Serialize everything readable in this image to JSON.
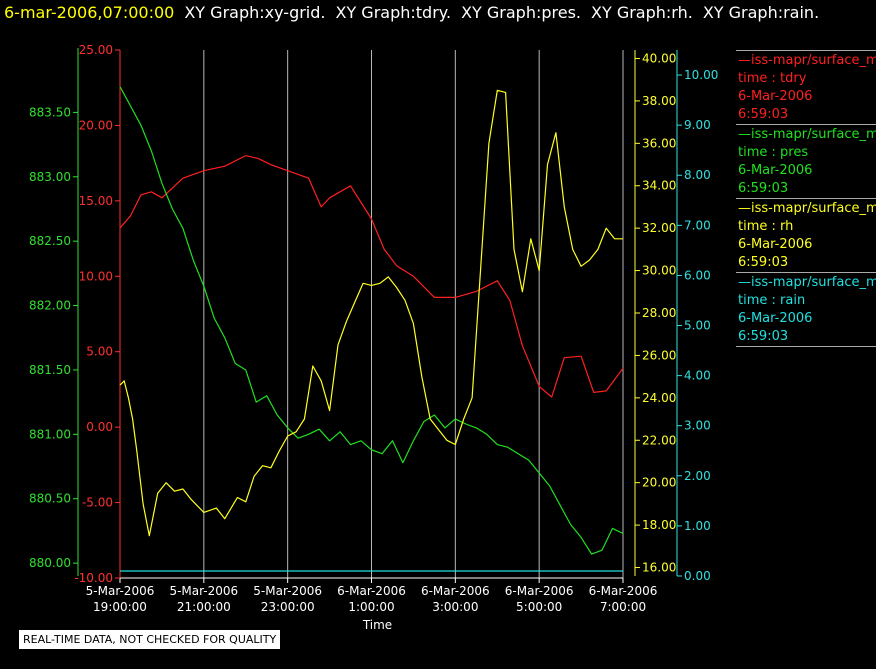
{
  "header": {
    "timestamp": "6-mar-2006,07:00:00",
    "graph_titles": [
      "XY Graph:xy-grid.",
      "XY Graph:tdry.",
      "XY Graph:pres.",
      "XY Graph:rh.",
      "XY Graph:rain."
    ]
  },
  "notice": "REAL-TIME DATA, NOT CHECKED FOR QUALITY",
  "legend": [
    {
      "color": "#ff2020",
      "source": "—iss-mapr/surface_m",
      "var": "time : tdry",
      "date": "6-Mar-2006",
      "time": "6:59:03"
    },
    {
      "color": "#20e020",
      "source": "—iss-mapr/surface_m",
      "var": "time : pres",
      "date": "6-Mar-2006",
      "time": "6:59:03"
    },
    {
      "color": "#ffff20",
      "source": "—iss-mapr/surface_m",
      "var": "time : rh",
      "date": "6-Mar-2006",
      "time": "6:59:03"
    },
    {
      "color": "#20e0e0",
      "source": "—iss-mapr/surface_m",
      "var": "time : rain",
      "date": "6-Mar-2006",
      "time": "6:59:03"
    }
  ],
  "chart_data": {
    "type": "line",
    "xlabel": "Time",
    "x_ticks": [
      {
        "d": "5-Mar-2006",
        "t": "19:00:00"
      },
      {
        "d": "5-Mar-2006",
        "t": "21:00:00"
      },
      {
        "d": "5-Mar-2006",
        "t": "23:00:00"
      },
      {
        "d": "6-Mar-2006",
        "t": "1:00:00"
      },
      {
        "d": "6-Mar-2006",
        "t": "3:00:00"
      },
      {
        "d": "6-Mar-2006",
        "t": "5:00:00"
      },
      {
        "d": "6-Mar-2006",
        "t": "7:00:00"
      }
    ],
    "x_unit": "hours since 5-Mar-2006 19:00",
    "xlim": [
      0,
      12
    ],
    "vertical_grid": true,
    "axes": {
      "tdry": {
        "color": "#ff3030",
        "ylim": [
          -10,
          25
        ],
        "ticks": [
          "25.00",
          "20.00",
          "15.00",
          "10.00",
          "5.00",
          "0.00",
          "-5.00",
          "-10.00"
        ]
      },
      "pres": {
        "color": "#30e030",
        "ylim": [
          879.9,
          884.0
        ],
        "ticks": [
          "883.50",
          "883.00",
          "882.50",
          "882.00",
          "881.50",
          "881.00",
          "880.50",
          "880.00"
        ]
      },
      "rh": {
        "color": "#ffff30",
        "ylim": [
          15.6,
          40.4
        ],
        "ticks": [
          "40.00",
          "38.00",
          "36.00",
          "34.00",
          "32.00",
          "30.00",
          "28.00",
          "26.00",
          "24.00",
          "22.00",
          "20.00",
          "18.00",
          "16.00"
        ]
      },
      "rain": {
        "color": "#30e0e0",
        "ylim": [
          0,
          10.5
        ],
        "ticks": [
          "10.00",
          "9.00",
          "8.00",
          "7.00",
          "6.00",
          "5.00",
          "4.00",
          "3.00",
          "2.00",
          "1.00",
          "0.00"
        ]
      }
    },
    "series": [
      {
        "name": "tdry",
        "axis": "tdry",
        "color": "#ff2020",
        "x": [
          0,
          0.25,
          0.5,
          0.75,
          1,
          1.5,
          2,
          2.5,
          3,
          3.3,
          3.6,
          4,
          4.5,
          4.8,
          5,
          5.5,
          6,
          6.3,
          6.6,
          7,
          7.5,
          8,
          8.5,
          9,
          9.3,
          9.6,
          10,
          10.3,
          10.6,
          11,
          11.3,
          11.6,
          12
        ],
        "y": [
          13.2,
          14,
          15.4,
          15.6,
          15.2,
          16.5,
          17,
          17.3,
          18,
          17.8,
          17.4,
          17,
          16.5,
          14.6,
          15.2,
          16,
          13.8,
          11.8,
          10.7,
          10,
          8.6,
          8.6,
          9,
          9.7,
          8.4,
          5.4,
          2.7,
          2,
          4.6,
          4.7,
          2.3,
          2.4,
          3.9
        ]
      },
      {
        "name": "pres",
        "axis": "pres",
        "color": "#20e020",
        "x": [
          0,
          0.25,
          0.5,
          0.75,
          1,
          1.25,
          1.5,
          1.75,
          2,
          2.25,
          2.5,
          2.75,
          3,
          3.25,
          3.5,
          3.75,
          4,
          4.25,
          4.5,
          4.75,
          5,
          5.25,
          5.5,
          5.75,
          6,
          6.25,
          6.5,
          6.75,
          7,
          7.25,
          7.5,
          7.75,
          8,
          8.25,
          8.5,
          8.75,
          9,
          9.25,
          9.5,
          9.75,
          10,
          10.25,
          10.5,
          10.75,
          11,
          11.25,
          11.5,
          11.75,
          12
        ],
        "y": [
          883.7,
          883.55,
          883.4,
          883.2,
          882.95,
          882.75,
          882.6,
          882.35,
          882.15,
          881.9,
          881.75,
          881.55,
          881.5,
          881.25,
          881.3,
          881.15,
          881.05,
          880.97,
          881.0,
          881.04,
          880.95,
          881.02,
          880.92,
          880.95,
          880.88,
          880.85,
          880.95,
          880.78,
          880.95,
          881.1,
          881.15,
          881.05,
          881.12,
          881.08,
          881.05,
          881.0,
          880.92,
          880.9,
          880.85,
          880.8,
          880.7,
          880.6,
          880.45,
          880.3,
          880.2,
          880.07,
          880.1,
          880.27,
          880.23
        ]
      },
      {
        "name": "rh",
        "axis": "rh",
        "color": "#ffff20",
        "x": [
          0,
          0.1,
          0.2,
          0.3,
          0.4,
          0.55,
          0.7,
          0.9,
          1.1,
          1.3,
          1.5,
          1.7,
          2,
          2.3,
          2.5,
          2.8,
          3,
          3.2,
          3.4,
          3.6,
          3.8,
          4,
          4.2,
          4.4,
          4.6,
          4.8,
          5,
          5.2,
          5.4,
          5.6,
          5.8,
          6,
          6.2,
          6.4,
          6.6,
          6.8,
          7,
          7.2,
          7.4,
          7.6,
          7.8,
          8,
          8.2,
          8.4,
          8.6,
          8.8,
          9,
          9.2,
          9.4,
          9.6,
          9.8,
          10,
          10.2,
          10.4,
          10.6,
          10.8,
          11,
          11.2,
          11.4,
          11.6,
          11.8,
          12
        ],
        "y": [
          24.6,
          24.8,
          24,
          23,
          21.5,
          19,
          17.5,
          19.5,
          20,
          19.6,
          19.7,
          19.2,
          18.6,
          18.8,
          18.3,
          19.3,
          19.1,
          20.3,
          20.8,
          20.7,
          21.5,
          22.2,
          22.4,
          23,
          25.5,
          24.8,
          23.4,
          26.5,
          27.6,
          28.5,
          29.4,
          29.3,
          29.4,
          29.7,
          29.2,
          28.6,
          27.5,
          25,
          23,
          22.5,
          22,
          21.8,
          23,
          24,
          30,
          36,
          38.5,
          38.4,
          31,
          29,
          31.5,
          30,
          35,
          36.5,
          33,
          31,
          30.2,
          30.5,
          31,
          32,
          31.5,
          31.5
        ]
      },
      {
        "name": "rain",
        "axis": "rain",
        "color": "#20e0e0",
        "x": [
          0,
          12
        ],
        "y": [
          0.1,
          0.1
        ]
      }
    ]
  }
}
